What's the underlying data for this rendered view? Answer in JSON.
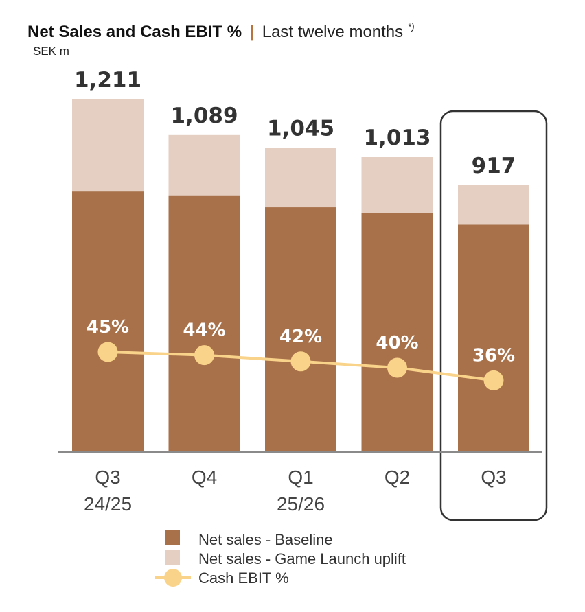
{
  "title": {
    "main": "Net Sales and Cash EBIT %",
    "separator": "|",
    "sub": "Last twelve months",
    "note": "*)"
  },
  "unit_label": "SEK m",
  "colors": {
    "baseline": "#a8714a",
    "uplift": "#e5cfc2",
    "line": "#fad38a",
    "axis": "#8a8a8a",
    "highlight_border": "#333333"
  },
  "chart_data": {
    "type": "bar",
    "stacked": true,
    "categories": [
      [
        "Q3",
        "24/25"
      ],
      [
        "Q4"
      ],
      [
        "Q1",
        "25/26"
      ],
      [
        "Q2"
      ],
      [
        "Q3"
      ]
    ],
    "totals": [
      "1,211",
      "1,089",
      "1,045",
      "1,013",
      "917"
    ],
    "series": [
      {
        "name": "Net sales - Baseline",
        "values": [
          895,
          882,
          841,
          822,
          781
        ]
      },
      {
        "name": "Net sales - Game Launch uplift",
        "values": [
          316,
          207,
          204,
          191,
          136
        ]
      }
    ],
    "line_series": {
      "name": "Cash EBIT %",
      "values": [
        45,
        44,
        42,
        40,
        36
      ],
      "labels": [
        "45%",
        "44%",
        "42%",
        "40%",
        "36%"
      ]
    },
    "legend": [
      "Net sales - Baseline",
      "Net sales - Game Launch uplift",
      "Cash EBIT %"
    ],
    "highlight_index": 4,
    "ylim": [
      0,
      1211
    ],
    "xlabel": "",
    "ylabel": ""
  }
}
